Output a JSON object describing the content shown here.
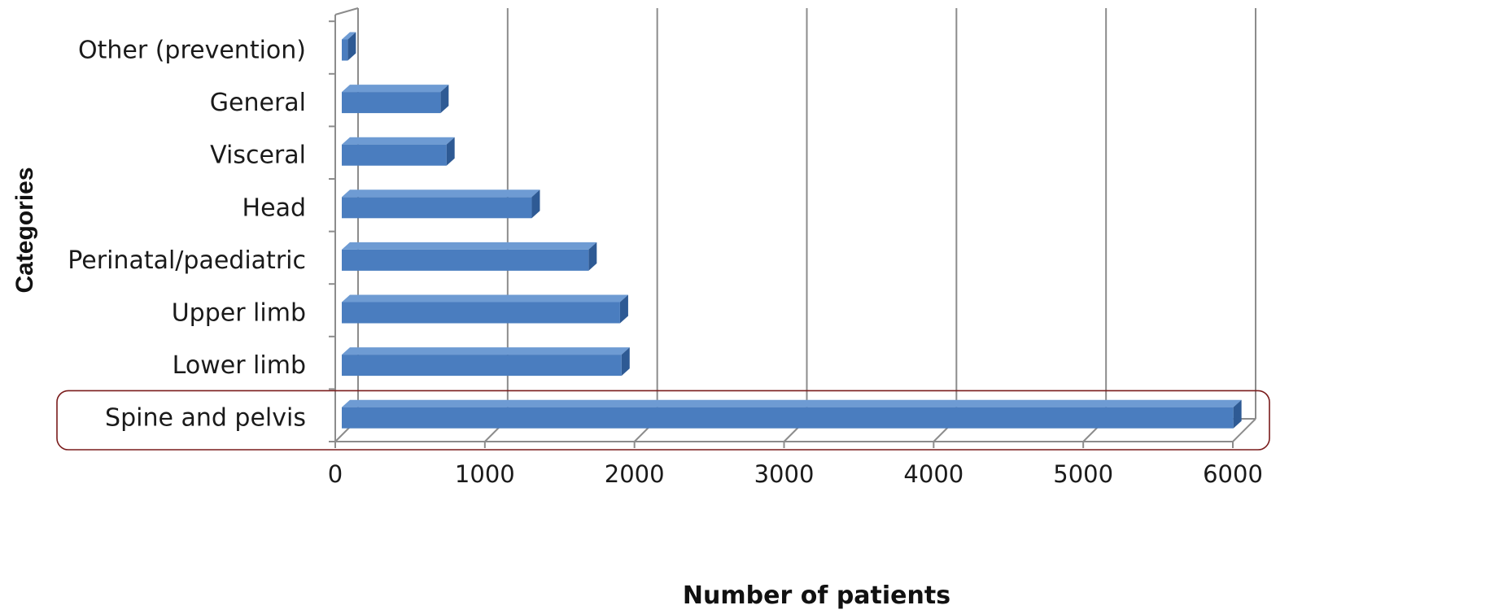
{
  "chart_data": {
    "type": "bar",
    "orientation": "horizontal",
    "style": "3d",
    "categories": [
      "Spine and pelvis",
      "Lower limb",
      "Upper limb",
      "Perinatal/paediatric",
      "Head",
      "Visceral",
      "General",
      "Other (prevention)"
    ],
    "values": [
      5960,
      1870,
      1860,
      1650,
      1270,
      700,
      660,
      40
    ],
    "xlabel": "Number of patients",
    "ylabel": "Categories",
    "xlim": [
      0,
      6000
    ],
    "xticks": [
      "0",
      "1000",
      "2000",
      "3000",
      "4000",
      "5000",
      "6000"
    ],
    "grid": "vertical",
    "highlight": "Spine and pelvis",
    "colors": {
      "bar_front": "#4a7dbf",
      "bar_top": "#6e9bd3",
      "bar_side": "#2e5a94",
      "gridline": "#8c8c8c",
      "highlight_box": "#7a1c1c"
    }
  }
}
